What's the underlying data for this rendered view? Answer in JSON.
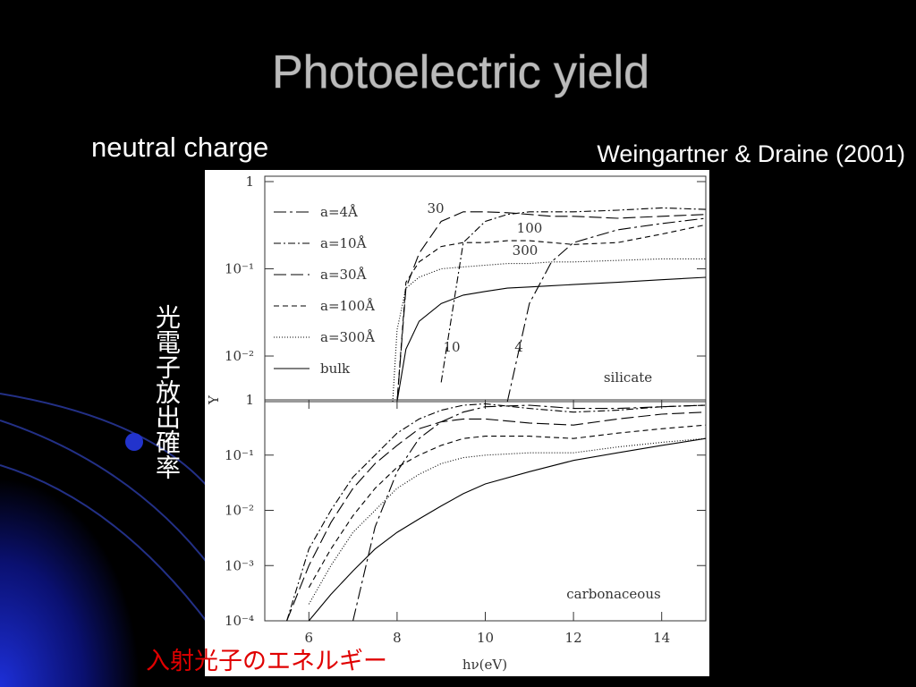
{
  "slide": {
    "title": "Photoelectric yield",
    "subtitle": "neutral charge",
    "citation": "Weingartner & Draine (2001)",
    "y_caption": "光電子放出確率",
    "x_caption": "入射光子のエネルギー"
  },
  "chart_data": [
    {
      "type": "line",
      "log_y": true,
      "ylabel": "Y",
      "legend": "upper-left",
      "x": [
        7.9,
        8.0,
        8.2,
        8.5,
        9,
        9.5,
        10,
        10.5,
        11,
        11.5,
        12,
        13,
        14,
        15
      ],
      "xlim": [
        5,
        15
      ],
      "ylim": [
        0.003,
        1
      ],
      "yticks": [
        1,
        {
          "value": 0.1,
          "label": "10⁻¹"
        },
        {
          "value": 0.01,
          "label": "10⁻²"
        }
      ],
      "annotations": [
        "30",
        "100",
        "300",
        "10",
        "4",
        "silicate"
      ],
      "series": [
        {
          "name": "a=4Å",
          "color": "#000000",
          "dash": "14 4 3 4",
          "values": [
            null,
            null,
            null,
            null,
            null,
            null,
            null,
            0.003,
            0.04,
            0.12,
            0.2,
            0.28,
            0.33,
            0.38
          ]
        },
        {
          "name": "a=10Å",
          "color": "#000000",
          "dash": "8 3 2 3",
          "values": [
            null,
            null,
            null,
            null,
            0.005,
            0.2,
            0.35,
            0.42,
            0.45,
            0.45,
            0.45,
            0.47,
            0.5,
            0.48
          ]
        },
        {
          "name": "a=30Å",
          "color": "#000000",
          "dash": "14 5",
          "values": [
            null,
            0.003,
            0.06,
            0.15,
            0.35,
            0.45,
            0.45,
            0.44,
            0.42,
            0.4,
            0.4,
            0.38,
            0.4,
            0.42
          ]
        },
        {
          "name": "a=100Å",
          "color": "#000000",
          "dash": "6 4",
          "values": [
            null,
            0.003,
            0.07,
            0.12,
            0.18,
            0.2,
            0.2,
            0.21,
            0.21,
            0.2,
            0.19,
            0.2,
            0.25,
            0.32
          ]
        },
        {
          "name": "a=300Å",
          "color": "#000000",
          "dash": "1 2",
          "values": [
            0.003,
            0.02,
            0.06,
            0.08,
            0.1,
            0.105,
            0.11,
            0.115,
            0.115,
            0.12,
            0.12,
            0.125,
            0.13,
            0.13
          ]
        },
        {
          "name": "bulk",
          "color": "#000000",
          "dash": "none",
          "values": [
            null,
            0.003,
            0.012,
            0.025,
            0.04,
            0.05,
            0.055,
            0.06,
            0.062,
            0.064,
            0.066,
            0.07,
            0.075,
            0.08
          ]
        }
      ]
    },
    {
      "type": "line",
      "log_y": true,
      "xlabel": "hν(eV)",
      "x": [
        5.5,
        6,
        6.5,
        7,
        7.5,
        8,
        8.5,
        9,
        9.5,
        10,
        11,
        12,
        13,
        14,
        15
      ],
      "xlim": [
        5,
        15
      ],
      "ylim": [
        0.0001,
        1
      ],
      "xticks": [
        6,
        8,
        10,
        12,
        14
      ],
      "yticks": [
        1,
        {
          "value": 0.1,
          "label": "10⁻¹"
        },
        {
          "value": 0.01,
          "label": "10⁻²"
        },
        {
          "value": 0.001,
          "label": "10⁻³"
        },
        {
          "value": 0.0001,
          "label": "10⁻⁴"
        }
      ],
      "annotations": [
        "carbonaceous"
      ],
      "series": [
        {
          "color": "#000000",
          "dash": "14 4 3 4",
          "values": [
            null,
            null,
            null,
            0.0001,
            0.005,
            0.05,
            0.2,
            0.4,
            0.6,
            0.75,
            0.8,
            0.7,
            0.7,
            0.75,
            0.8
          ]
        },
        {
          "color": "#000000",
          "dash": "8 3 2 3",
          "values": [
            0.0001,
            0.002,
            0.01,
            0.04,
            0.1,
            0.25,
            0.45,
            0.65,
            0.8,
            0.85,
            0.7,
            0.6,
            0.65,
            0.75,
            0.8
          ]
        },
        {
          "color": "#000000",
          "dash": "14 5",
          "values": [
            0.0001,
            0.001,
            0.006,
            0.025,
            0.07,
            0.15,
            0.3,
            0.4,
            0.45,
            0.45,
            0.38,
            0.35,
            0.45,
            0.55,
            0.6
          ]
        },
        {
          "color": "#000000",
          "dash": "6 4",
          "values": [
            null,
            0.0004,
            0.002,
            0.008,
            0.025,
            0.06,
            0.1,
            0.15,
            0.2,
            0.22,
            0.22,
            0.2,
            0.25,
            0.3,
            0.35
          ]
        },
        {
          "color": "#000000",
          "dash": "1 2",
          "values": [
            null,
            0.0002,
            0.001,
            0.004,
            0.01,
            0.025,
            0.045,
            0.07,
            0.09,
            0.1,
            0.11,
            0.11,
            0.14,
            0.17,
            0.2
          ]
        },
        {
          "color": "#000000",
          "dash": "none",
          "values": [
            null,
            0.0001,
            0.0003,
            0.0008,
            0.002,
            0.004,
            0.007,
            0.012,
            0.02,
            0.03,
            0.05,
            0.08,
            0.11,
            0.15,
            0.2
          ]
        }
      ]
    }
  ]
}
